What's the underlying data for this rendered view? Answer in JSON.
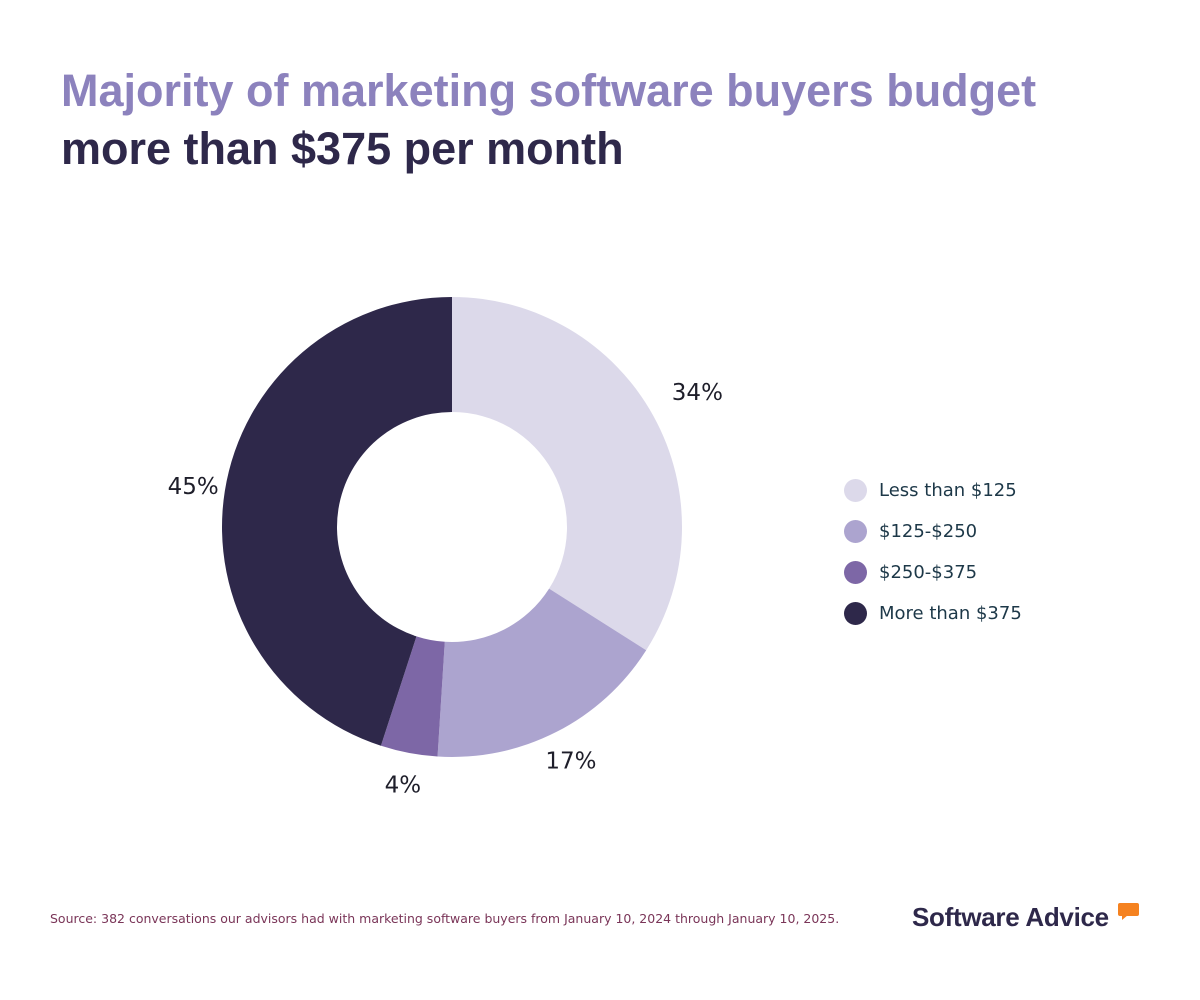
{
  "title": {
    "line1": "Majority of marketing software buyers budget",
    "line2": "more than $375 per month"
  },
  "chart_data": {
    "type": "pie",
    "variant": "donut",
    "categories": [
      "Less than $125",
      "$125-$250",
      "$250-$375",
      "More than $375"
    ],
    "values": [
      34,
      17,
      4,
      45
    ],
    "labels": [
      "34%",
      "17%",
      "4%",
      "45%"
    ],
    "colors": [
      "#dcd9ea",
      "#aca4cf",
      "#7d67a6",
      "#2e284a"
    ],
    "legend_placement": "right"
  },
  "source": "Source: 382 conversations our advisors had with marketing software buyers from January 10, 2024 through January 10, 2025.",
  "logo": {
    "text": "Software Advice",
    "accent": "#f58220"
  }
}
